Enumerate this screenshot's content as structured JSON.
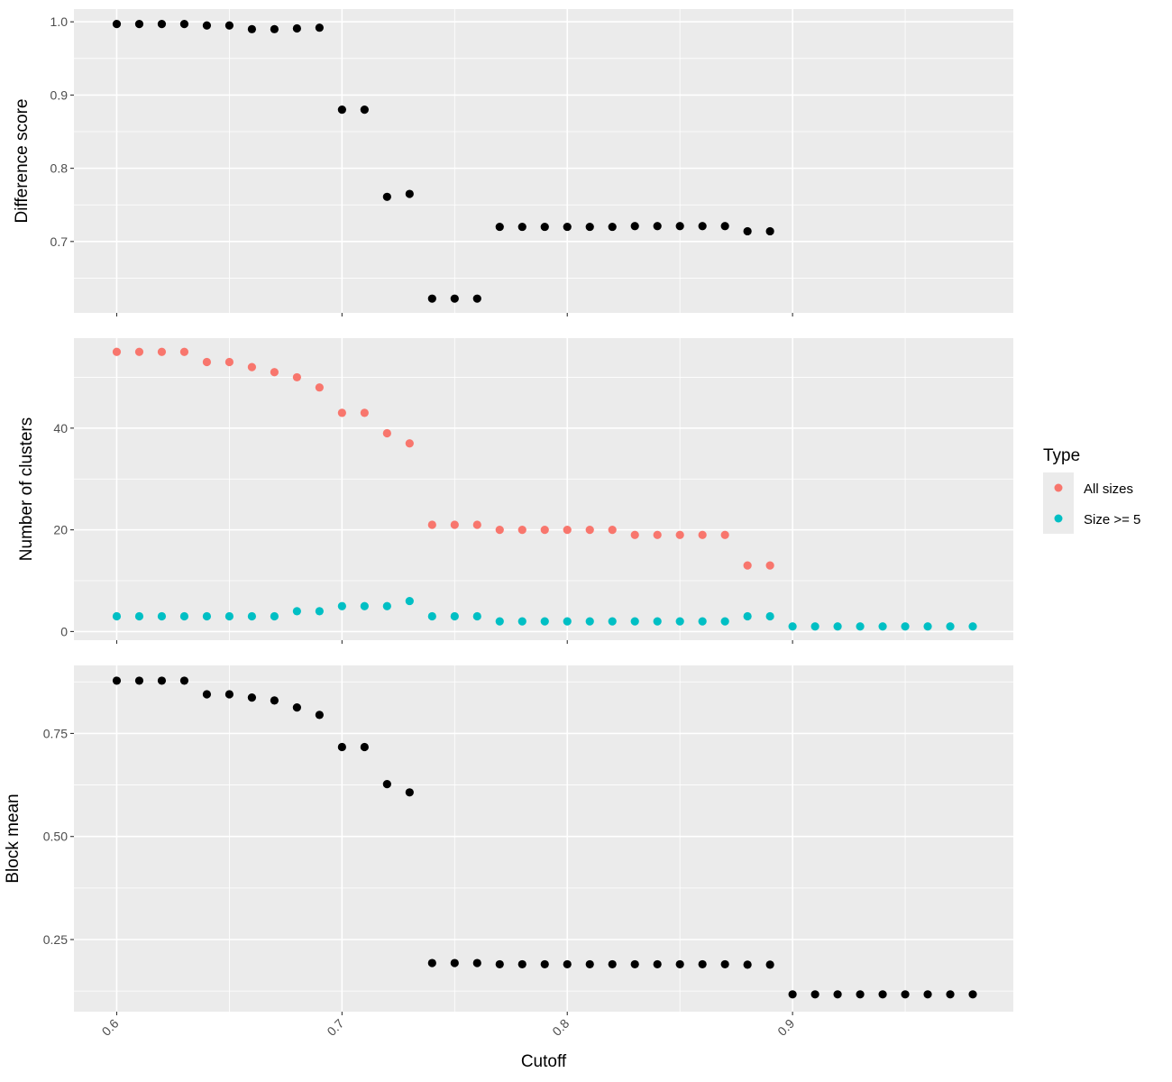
{
  "chart_data": {
    "type": "scatter",
    "xlabel": "Cutoff",
    "x_ticks": [
      0.6,
      0.7,
      0.8,
      0.9
    ],
    "x_tick_labels": [
      "0.6",
      "0.7",
      "0.8",
      "0.9"
    ],
    "xlim": [
      0.581,
      0.998
    ],
    "x_minor": [
      0.65,
      0.75,
      0.85,
      0.95
    ],
    "legend": {
      "title": "Type",
      "position": "right",
      "entries": [
        {
          "label": "All sizes",
          "color": "#F8766D"
        },
        {
          "label": "Size >= 5",
          "color": "#00BFC4"
        }
      ]
    },
    "panels": [
      {
        "ylabel": "Difference score",
        "ylim": [
          0.6025,
          1.0175
        ],
        "y_ticks": [
          0.7,
          0.8,
          0.9,
          1.0
        ],
        "y_tick_labels": [
          "0.7",
          "0.8",
          "0.9",
          "1.0"
        ],
        "y_minor": [
          0.65,
          0.75,
          0.85,
          0.95
        ],
        "series": [
          {
            "name": "Difference score",
            "color": "#000000",
            "x": [
              0.6,
              0.61,
              0.62,
              0.63,
              0.64,
              0.65,
              0.66,
              0.67,
              0.68,
              0.69,
              0.7,
              0.71,
              0.72,
              0.73,
              0.74,
              0.75,
              0.76,
              0.77,
              0.78,
              0.79,
              0.8,
              0.81,
              0.82,
              0.83,
              0.84,
              0.85,
              0.86,
              0.87,
              0.88,
              0.89
            ],
            "y": [
              0.997,
              0.997,
              0.997,
              0.997,
              0.995,
              0.995,
              0.99,
              0.99,
              0.991,
              0.992,
              0.88,
              0.88,
              0.761,
              0.765,
              0.622,
              0.622,
              0.622,
              0.72,
              0.72,
              0.72,
              0.72,
              0.72,
              0.72,
              0.721,
              0.721,
              0.721,
              0.721,
              0.721,
              0.714,
              0.714
            ]
          }
        ]
      },
      {
        "ylabel": "Number of clusters",
        "ylim": [
          -1.7,
          57.7
        ],
        "y_ticks": [
          0,
          20,
          40
        ],
        "y_tick_labels": [
          "0",
          "20",
          "40"
        ],
        "y_minor": [
          10,
          30,
          50
        ],
        "series": [
          {
            "name": "All sizes",
            "color": "#F8766D",
            "x": [
              0.6,
              0.61,
              0.62,
              0.63,
              0.64,
              0.65,
              0.66,
              0.67,
              0.68,
              0.69,
              0.7,
              0.71,
              0.72,
              0.73,
              0.74,
              0.75,
              0.76,
              0.77,
              0.78,
              0.79,
              0.8,
              0.81,
              0.82,
              0.83,
              0.84,
              0.85,
              0.86,
              0.87,
              0.88,
              0.89
            ],
            "y": [
              55,
              55,
              55,
              55,
              53,
              53,
              52,
              51,
              50,
              48,
              43,
              43,
              39,
              37,
              21,
              21,
              21,
              20,
              20,
              20,
              20,
              20,
              20,
              19,
              19,
              19,
              19,
              19,
              13,
              13
            ]
          },
          {
            "name": "Size >= 5",
            "color": "#00BFC4",
            "x": [
              0.6,
              0.61,
              0.62,
              0.63,
              0.64,
              0.65,
              0.66,
              0.67,
              0.68,
              0.69,
              0.7,
              0.71,
              0.72,
              0.73,
              0.74,
              0.75,
              0.76,
              0.77,
              0.78,
              0.79,
              0.8,
              0.81,
              0.82,
              0.83,
              0.84,
              0.85,
              0.86,
              0.87,
              0.88,
              0.89,
              0.9,
              0.91,
              0.92,
              0.93,
              0.94,
              0.95,
              0.96,
              0.97,
              0.98
            ],
            "y": [
              3,
              3,
              3,
              3,
              3,
              3,
              3,
              3,
              4,
              4,
              5,
              5,
              5,
              6,
              3,
              3,
              3,
              2,
              2,
              2,
              2,
              2,
              2,
              2,
              2,
              2,
              2,
              2,
              3,
              3,
              1,
              1,
              1,
              1,
              1,
              1,
              1,
              1,
              1
            ]
          }
        ]
      },
      {
        "ylabel": "Block mean",
        "ylim": [
          0.075,
          0.915
        ],
        "y_ticks": [
          0.25,
          0.5,
          0.75
        ],
        "y_tick_labels": [
          "0.25",
          "0.50",
          "0.75"
        ],
        "y_minor": [
          0.125,
          0.375,
          0.625,
          0.875
        ],
        "series": [
          {
            "name": "Block mean",
            "color": "#000000",
            "x": [
              0.6,
              0.61,
              0.62,
              0.63,
              0.64,
              0.65,
              0.66,
              0.67,
              0.68,
              0.69,
              0.7,
              0.71,
              0.72,
              0.73,
              0.74,
              0.75,
              0.76,
              0.77,
              0.78,
              0.79,
              0.8,
              0.81,
              0.82,
              0.83,
              0.84,
              0.85,
              0.86,
              0.87,
              0.88,
              0.89,
              0.9,
              0.91,
              0.92,
              0.93,
              0.94,
              0.95,
              0.96,
              0.97,
              0.98
            ],
            "y": [
              0.878,
              0.878,
              0.878,
              0.878,
              0.845,
              0.845,
              0.837,
              0.83,
              0.813,
              0.795,
              0.717,
              0.717,
              0.627,
              0.607,
              0.193,
              0.193,
              0.193,
              0.19,
              0.19,
              0.19,
              0.19,
              0.19,
              0.19,
              0.19,
              0.19,
              0.19,
              0.19,
              0.19,
              0.189,
              0.189,
              0.117,
              0.117,
              0.117,
              0.117,
              0.117,
              0.117,
              0.117,
              0.117,
              0.117
            ]
          }
        ]
      }
    ]
  }
}
